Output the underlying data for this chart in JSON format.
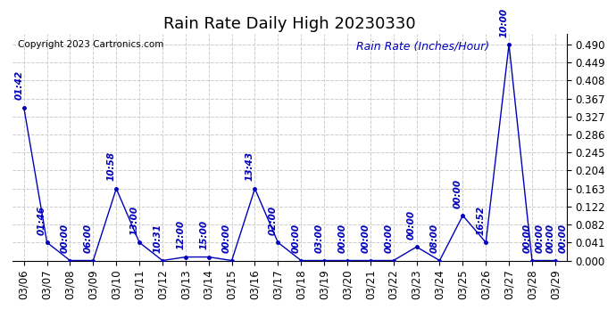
{
  "title": "Rain Rate Daily High 20230330",
  "ylabel": "Rain Rate (Inches/Hour)",
  "copyright": "Copyright 2023 Cartronics.com",
  "background_color": "#ffffff",
  "line_color": "#0000bb",
  "grid_color": "#cccccc",
  "x_labels": [
    "03/06",
    "03/07",
    "03/08",
    "03/09",
    "03/10",
    "03/11",
    "03/12",
    "03/13",
    "03/14",
    "03/15",
    "03/16",
    "03/17",
    "03/18",
    "03/19",
    "03/20",
    "03/21",
    "03/22",
    "03/23",
    "03/24",
    "03/25",
    "03/26",
    "03/27",
    "03/28",
    "03/29"
  ],
  "x_indices": [
    0,
    1,
    2,
    3,
    4,
    5,
    6,
    7,
    8,
    9,
    10,
    11,
    12,
    13,
    14,
    15,
    16,
    17,
    18,
    19,
    20,
    21,
    22,
    23
  ],
  "y_values": [
    0.347,
    0.041,
    0.0,
    0.0,
    0.163,
    0.041,
    0.0,
    0.008,
    0.008,
    0.0,
    0.163,
    0.041,
    0.0,
    0.0,
    0.0,
    0.0,
    0.0,
    0.031,
    0.0,
    0.102,
    0.041,
    0.49,
    0.0,
    0.0
  ],
  "point_labels": [
    "01:42",
    "01:46",
    "00:00",
    "06:00",
    "10:58",
    "13:00",
    "10:31",
    "12:00",
    "15:00",
    "00:00",
    "13:43",
    "02:00",
    "00:00",
    "03:00",
    "00:00",
    "00:00",
    "00:00",
    "00:00",
    "08:00",
    "00:00",
    "16:52",
    "10:00",
    "00:00",
    "00:00"
  ],
  "point_labels2": [
    "",
    "",
    "",
    "",
    "",
    "",
    "",
    "",
    "",
    "",
    "",
    "",
    "",
    "",
    "",
    "",
    "",
    "",
    "",
    "",
    "",
    "",
    "00:00",
    "00:00"
  ],
  "yticks": [
    0.0,
    0.041,
    0.082,
    0.122,
    0.163,
    0.204,
    0.245,
    0.286,
    0.327,
    0.367,
    0.408,
    0.449,
    0.49
  ],
  "ylim": [
    0.0,
    0.515
  ],
  "title_fontsize": 13,
  "label_fontsize": 9,
  "annotation_fontsize": 7.5,
  "tick_fontsize": 8.5
}
